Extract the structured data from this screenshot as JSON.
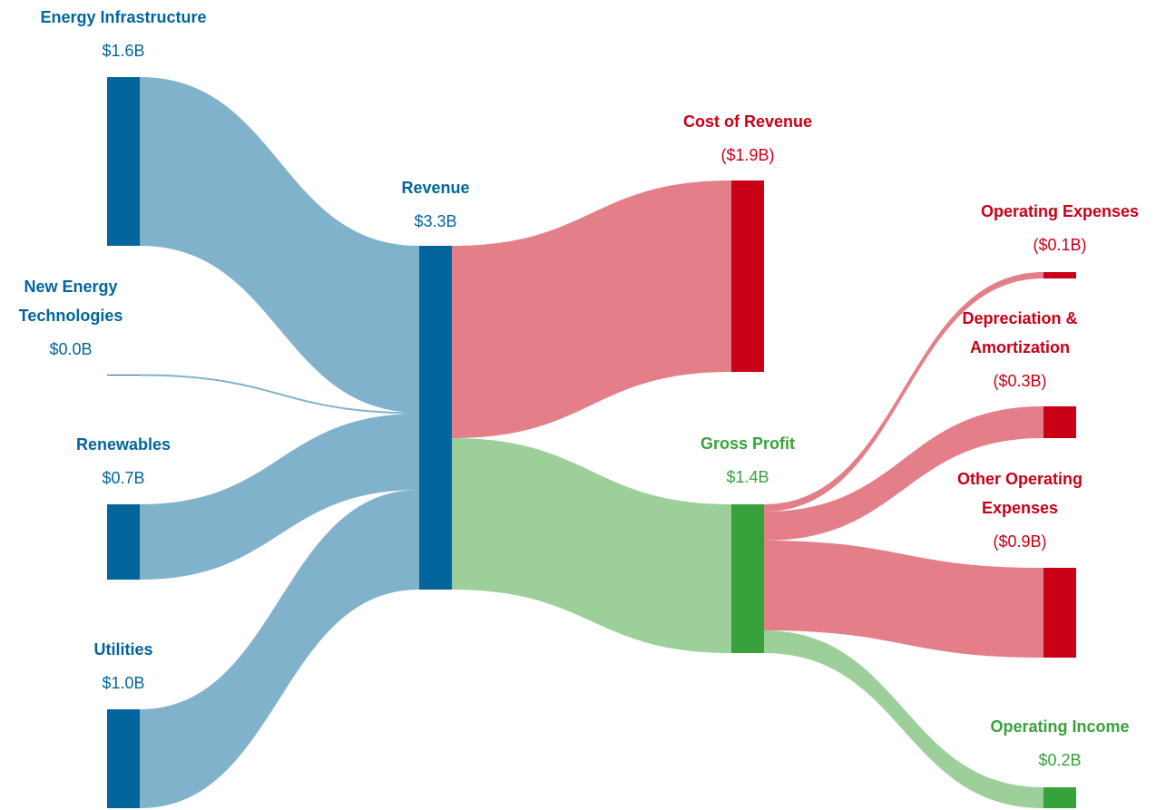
{
  "colors": {
    "blue_node": "#02659b",
    "blue_link": "#80b2cc",
    "red_node": "#c90016",
    "red_link": "#e47f89",
    "green_node": "#37a23b",
    "green_link": "#9ccf99",
    "blue_text": "#02659b",
    "red_text": "#c90016",
    "green_text": "#37a23b"
  },
  "chart_data": {
    "type": "sankey",
    "unit": "$B",
    "nodes": [
      {
        "id": "energy_infrastructure",
        "name_lines": [
          "Energy Infrastructure"
        ],
        "value_label": "$1.6B",
        "value": 1.6,
        "color": "blue"
      },
      {
        "id": "new_energy",
        "name_lines": [
          "New Energy",
          "Technologies"
        ],
        "value_label": "$0.0B",
        "value": 0.0,
        "color": "blue"
      },
      {
        "id": "renewables",
        "name_lines": [
          "Renewables"
        ],
        "value_label": "$0.7B",
        "value": 0.7,
        "color": "blue"
      },
      {
        "id": "utilities",
        "name_lines": [
          "Utilities"
        ],
        "value_label": "$1.0B",
        "value": 1.0,
        "color": "blue"
      },
      {
        "id": "revenue",
        "name_lines": [
          "Revenue"
        ],
        "value_label": "$3.3B",
        "value": 3.3,
        "color": "blue"
      },
      {
        "id": "cost_of_revenue",
        "name_lines": [
          "Cost of Revenue"
        ],
        "value_label": "($1.9B)",
        "value": 1.9,
        "color": "red"
      },
      {
        "id": "gross_profit",
        "name_lines": [
          "Gross Profit"
        ],
        "value_label": "$1.4B",
        "value": 1.4,
        "color": "green"
      },
      {
        "id": "operating_expenses",
        "name_lines": [
          "Operating Expenses"
        ],
        "value_label": "($0.1B)",
        "value": 0.1,
        "color": "red"
      },
      {
        "id": "depreciation",
        "name_lines": [
          "Depreciation &",
          "Amortization"
        ],
        "value_label": "($0.3B)",
        "value": 0.3,
        "color": "red"
      },
      {
        "id": "other_operating",
        "name_lines": [
          "Other Operating",
          "Expenses"
        ],
        "value_label": "($0.9B)",
        "value": 0.9,
        "color": "red"
      },
      {
        "id": "operating_income",
        "name_lines": [
          "Operating Income"
        ],
        "value_label": "$0.2B",
        "value": 0.2,
        "color": "green"
      }
    ],
    "links": [
      {
        "source": "energy_infrastructure",
        "target": "revenue",
        "value": 1.6,
        "color": "blue"
      },
      {
        "source": "new_energy",
        "target": "revenue",
        "value": 0.0,
        "color": "blue"
      },
      {
        "source": "renewables",
        "target": "revenue",
        "value": 0.7,
        "color": "blue"
      },
      {
        "source": "utilities",
        "target": "revenue",
        "value": 1.0,
        "color": "blue"
      },
      {
        "source": "revenue",
        "target": "cost_of_revenue",
        "value": 1.9,
        "color": "red"
      },
      {
        "source": "revenue",
        "target": "gross_profit",
        "value": 1.4,
        "color": "green"
      },
      {
        "source": "gross_profit",
        "target": "operating_expenses",
        "value": 0.1,
        "color": "red"
      },
      {
        "source": "gross_profit",
        "target": "depreciation",
        "value": 0.3,
        "color": "red"
      },
      {
        "source": "gross_profit",
        "target": "other_operating",
        "value": 0.9,
        "color": "red"
      },
      {
        "source": "gross_profit",
        "target": "operating_income",
        "value": 0.2,
        "color": "green"
      }
    ]
  }
}
